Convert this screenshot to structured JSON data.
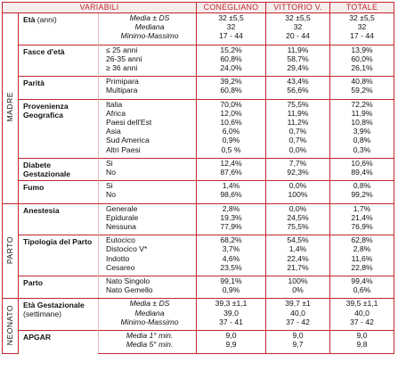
{
  "header": {
    "columns": [
      "VARIABILI",
      "CONEGLIANO",
      "VITTORIO V.",
      "TOTALE"
    ]
  },
  "sections": [
    {
      "label": "MADRE",
      "groups": [
        {
          "label": "Età",
          "note": "(anni)",
          "italic_labels": true,
          "rows": [
            {
              "label": "Media ± DS",
              "values": [
                "32 ±5,5",
                "32 ±5,5",
                "32 ±5,5"
              ]
            },
            {
              "label": "Mediana",
              "values": [
                "32",
                "32",
                "32"
              ]
            },
            {
              "label": "Minimo-Massimo",
              "values": [
                "17 - 44",
                "20 - 44",
                "17 - 44"
              ]
            }
          ]
        },
        {
          "label": "Fasce d'età",
          "rows": [
            {
              "label": "≤ 25 anni",
              "values": [
                "15,2%",
                "11,9%",
                "13,9%"
              ]
            },
            {
              "label": "26-35 anni",
              "values": [
                "60,8%",
                "58,7%",
                "60,0%"
              ]
            },
            {
              "label": "≥ 36 anni",
              "values": [
                "24,0%",
                "29,4%",
                "26,1%"
              ]
            }
          ]
        },
        {
          "label": "Parità",
          "rows": [
            {
              "label": "Primipara",
              "values": [
                "39,2%",
                "43,4%",
                "40,8%"
              ]
            },
            {
              "label": "Multipara",
              "values": [
                "60,8%",
                "56,6%",
                "59,2%"
              ]
            }
          ]
        },
        {
          "label": "Provenienza Geografica",
          "rows": [
            {
              "label": "Italia",
              "values": [
                "70,0%",
                "75,5%",
                "72,2%"
              ]
            },
            {
              "label": "Africa",
              "values": [
                "12,0%",
                "11,9%",
                "11,9%"
              ]
            },
            {
              "label": "Paesi dell'Est",
              "values": [
                "10,6%",
                "11,2%",
                "10,8%"
              ]
            },
            {
              "label": "Asia",
              "values": [
                "6,0%",
                "0,7%",
                "3,9%"
              ]
            },
            {
              "label": "Sud America",
              "values": [
                "0,9%",
                "0,7%",
                "0,8%"
              ]
            },
            {
              "label": "Altri Paesi",
              "values": [
                "0,5 %",
                "0,0%",
                "0,3%"
              ]
            }
          ]
        },
        {
          "label": "Diabete Gestazionale",
          "rows": [
            {
              "label": "Si",
              "values": [
                "12,4%",
                "7,7%",
                "10,6%"
              ]
            },
            {
              "label": "No",
              "values": [
                "87,6%",
                "92,3%",
                "89,4%"
              ]
            }
          ]
        },
        {
          "label": "Fumo",
          "rows": [
            {
              "label": "Si",
              "values": [
                "1,4%",
                "0,0%",
                "0,8%"
              ]
            },
            {
              "label": "No",
              "values": [
                "98,6%",
                "100%",
                "99,2%"
              ]
            }
          ]
        }
      ]
    },
    {
      "label": "PARTO",
      "groups": [
        {
          "label": "Anestesia",
          "rows": [
            {
              "label": "Generale",
              "values": [
                "2,8%",
                "0,0%",
                "1,7%"
              ]
            },
            {
              "label": "Epidurale",
              "values": [
                "19,3%",
                "24,5%",
                "21,4%"
              ]
            },
            {
              "label": "Nessuna",
              "values": [
                "77,9%",
                "75,5%",
                "76,9%"
              ]
            }
          ]
        },
        {
          "label": "Tipologia del Parto",
          "rows": [
            {
              "label": "Eutocico",
              "values": [
                "68,2%",
                "54,5%",
                "62,8%"
              ]
            },
            {
              "label": "Distocico V*",
              "values": [
                "3,7%",
                "1,4%",
                "2,8%"
              ]
            },
            {
              "label": "Indotto",
              "values": [
                "4,6%",
                "22,4%",
                "11,6%"
              ]
            },
            {
              "label": "Cesareo",
              "values": [
                "23,5%",
                "21,7%",
                "22,8%"
              ]
            }
          ]
        },
        {
          "label": "Parto",
          "rows": [
            {
              "label": "Nato Singolo",
              "values": [
                "99,1%",
                "100%",
                "99,4%"
              ]
            },
            {
              "label": "Nato Gemello",
              "values": [
                "0,9%",
                "0%",
                "0,6%"
              ]
            }
          ]
        }
      ]
    },
    {
      "label": "NEONATO",
      "groups": [
        {
          "label": "Età Gestazionale",
          "note": "(settimane)",
          "italic_labels": true,
          "rows": [
            {
              "label": "Media ± DS",
              "values": [
                "39,3 ±1,1",
                "39,7 ±1",
                "39,5 ±1,1"
              ]
            },
            {
              "label": "Mediana",
              "values": [
                "39,0",
                "40,0",
                "40,0"
              ]
            },
            {
              "label": "Minimo-Massimo",
              "values": [
                "37 - 41",
                "37 - 42",
                "37 - 42"
              ]
            }
          ]
        },
        {
          "label": "APGAR",
          "italic_labels": true,
          "rows": [
            {
              "label": "Media 1° min.",
              "values": [
                "9,0",
                "9,0",
                "9,0"
              ]
            },
            {
              "label": "Media 5° min.",
              "values": [
                "9,9",
                "9,7",
                "9,8"
              ]
            }
          ]
        }
      ]
    }
  ]
}
